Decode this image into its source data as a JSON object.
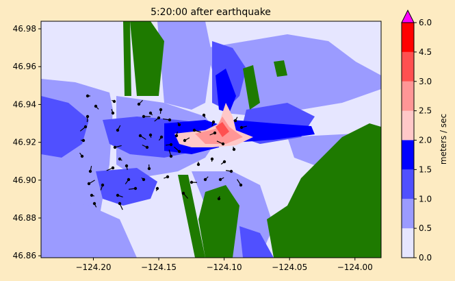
{
  "chart_data": {
    "type": "heatmap",
    "title": "5:20:00 after earthquake",
    "xlabel": "",
    "ylabel": "",
    "x_ticks": [
      "−124.20",
      "−124.15",
      "−124.10",
      "−124.05",
      "−124.00"
    ],
    "x_tick_values": [
      -124.2,
      -124.15,
      -124.1,
      -124.05,
      -124.0
    ],
    "y_ticks": [
      "46.86",
      "46.88",
      "46.90",
      "46.92",
      "46.94",
      "46.96",
      "46.98"
    ],
    "y_tick_values": [
      46.86,
      46.88,
      46.9,
      46.92,
      46.94,
      46.96,
      46.98
    ],
    "xlim": [
      -124.24,
      -123.98
    ],
    "ylim": [
      46.859,
      46.984
    ],
    "colorbar": {
      "label": "meters / sec",
      "levels": [
        "0.0",
        "0.5",
        "1.0",
        "1.5",
        "2.0",
        "2.5",
        "3.0",
        "4.5",
        "6.0"
      ],
      "level_values": [
        0.0,
        0.5,
        1.0,
        1.5,
        2.0,
        2.5,
        3.0,
        4.5,
        6.0
      ],
      "colors": [
        "#e6e6ff",
        "#9b9bff",
        "#5050ff",
        "#0000ff",
        "#ffc8c8",
        "#ff9696",
        "#ff5050",
        "#ff0000"
      ],
      "extend_max_color": "#ff00ff"
    },
    "land_color": "#1e7a00",
    "grid": false
  }
}
